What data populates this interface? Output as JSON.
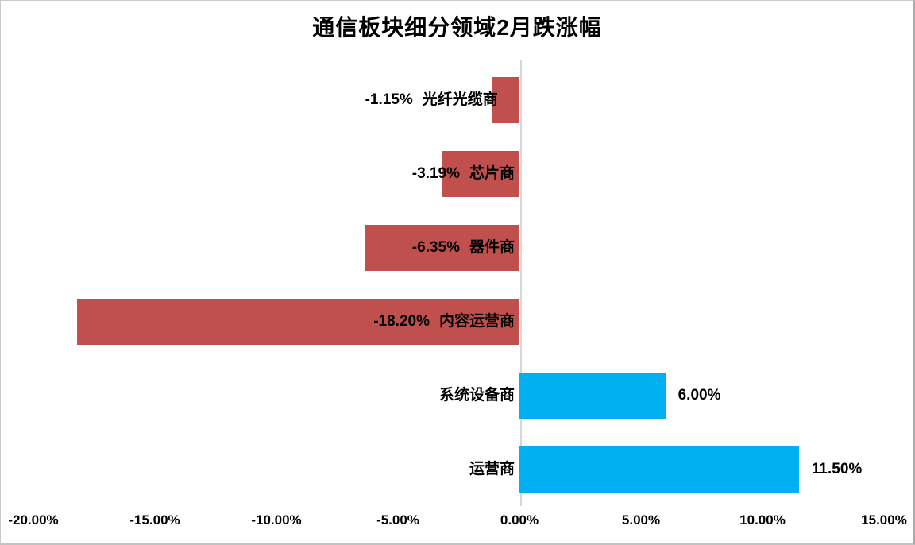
{
  "title": "通信板块细分领域2月跌涨幅",
  "chart_data": {
    "type": "bar",
    "orientation": "horizontal",
    "title": "通信板块细分领域2月跌涨幅",
    "categories": [
      "光纤光缆商",
      "芯片商",
      "器件商",
      "内容运营商",
      "系统设备商",
      "运营商"
    ],
    "values": [
      -1.15,
      -3.19,
      -6.35,
      -18.2,
      6.0,
      11.5
    ],
    "value_labels": [
      "-1.15%",
      "-3.19%",
      "-6.35%",
      "-18.20%",
      "6.00%",
      "11.50%"
    ],
    "x_ticks": [
      "-20.00%",
      "-15.00%",
      "-10.00%",
      "-5.00%",
      "0.00%",
      "5.00%",
      "10.00%",
      "15.00%"
    ],
    "x_tick_values": [
      -20,
      -15,
      -10,
      -5,
      0,
      5,
      10,
      15
    ],
    "xlim": [
      -20,
      15
    ],
    "xlabel": "",
    "ylabel": "",
    "grid": false,
    "legend": false,
    "negative_color": "#C0504D",
    "positive_color": "#00B0F0",
    "axis_line_color": "#D6D6D6",
    "text_color": "#000000",
    "background_color": "#FFFFFF"
  }
}
